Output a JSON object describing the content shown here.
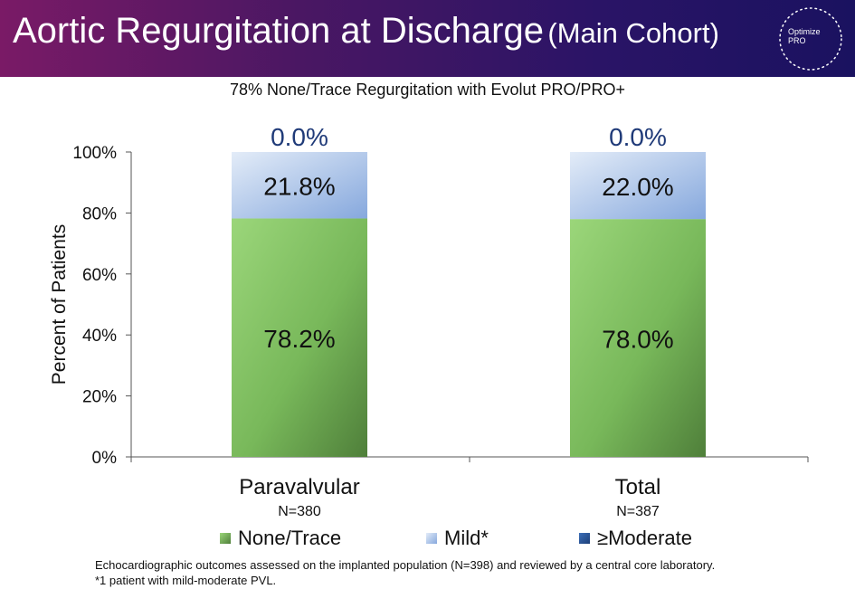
{
  "header": {
    "title": "Aortic Regurgitation at Discharge",
    "subtitle": "(Main Cohort)",
    "logo_line1": "Optimize",
    "logo_line2": "PRO"
  },
  "chart_data": {
    "type": "bar",
    "stacked": true,
    "title": "78% None/Trace Regurgitation with Evolut PRO/PRO+",
    "ylabel": "Percent of Patients",
    "xlabel": "",
    "ylim": [
      0,
      100
    ],
    "yticks": [
      "0%",
      "20%",
      "40%",
      "60%",
      "80%",
      "100%"
    ],
    "categories": [
      "Paravalvular",
      "Total"
    ],
    "category_sublabels": [
      "N=380",
      "N=387"
    ],
    "series": [
      {
        "name": "None/Trace",
        "values": [
          78.2,
          78.0
        ],
        "labels": [
          "78.2%",
          "78.0%"
        ],
        "color": "#7dbb5c"
      },
      {
        "name": "Mild*",
        "values": [
          21.8,
          22.0
        ],
        "labels": [
          "21.8%",
          "22.0%"
        ],
        "color": "#b9cdec"
      },
      {
        "name": "≥Moderate",
        "values": [
          0.0,
          0.0
        ],
        "labels": [
          "0.0%",
          "0.0%"
        ],
        "color": "#2a5aa0"
      }
    ],
    "legend_position": "bottom",
    "grid": false
  },
  "footnote": {
    "line1": "Echocardiographic outcomes assessed on the implanted population (N=398) and reviewed by a central core laboratory.",
    "line2": "*1 patient with mild-moderate PVL."
  }
}
